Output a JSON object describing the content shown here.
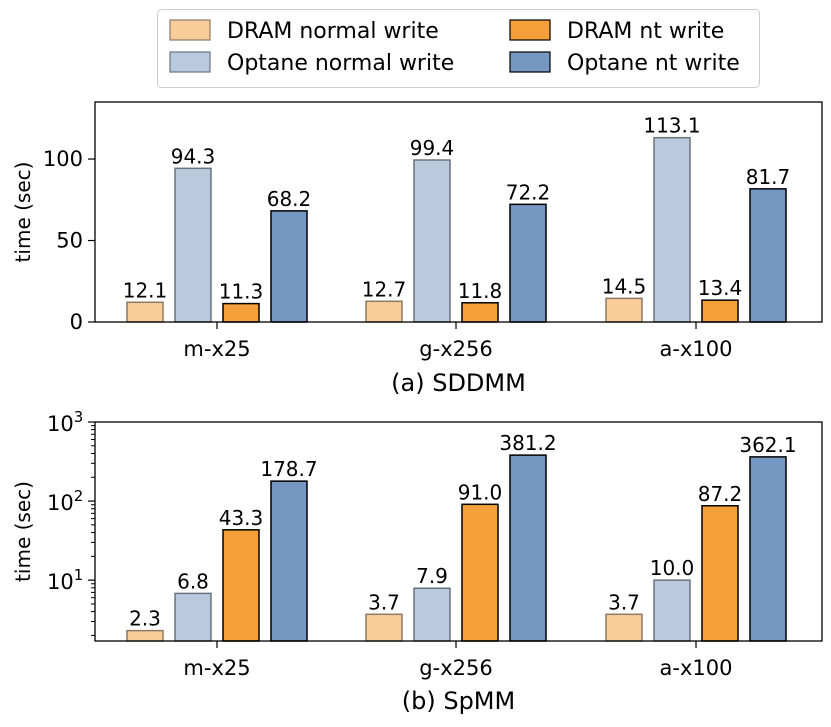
{
  "legend": {
    "entries": [
      {
        "label": "DRAM normal write",
        "fill": "#f8cd9a",
        "stroke": "#8a7a66"
      },
      {
        "label": "Optane normal write",
        "fill": "#b9c9de",
        "stroke": "#6b737c"
      },
      {
        "label": "DRAM nt write",
        "fill": "#f39f3a",
        "stroke": "#000000"
      },
      {
        "label": "Optane nt write",
        "fill": "#7598c2",
        "stroke": "#000000"
      }
    ]
  },
  "chart_data": [
    {
      "type": "bar",
      "title": "(a) SDDMM",
      "ylabel": "time (sec)",
      "scale": "linear",
      "ylim": [
        0,
        135
      ],
      "yticks": [
        {
          "value": 0,
          "label": "0"
        },
        {
          "value": 50,
          "label": "50"
        },
        {
          "value": 100,
          "label": "100"
        }
      ],
      "categories": [
        "m-x25",
        "g-x256",
        "a-x100"
      ],
      "series": [
        {
          "name": "DRAM normal write",
          "values": [
            12.1,
            12.7,
            14.5
          ],
          "labels": [
            "12.1",
            "12.7",
            "14.5"
          ]
        },
        {
          "name": "Optane normal write",
          "values": [
            94.3,
            99.4,
            113.1
          ],
          "labels": [
            "94.3",
            "99.4",
            "113.1"
          ]
        },
        {
          "name": "DRAM nt write",
          "values": [
            11.3,
            11.8,
            13.4
          ],
          "labels": [
            "11.3",
            "11.8",
            "13.4"
          ]
        },
        {
          "name": "Optane nt write",
          "values": [
            68.2,
            72.2,
            81.7
          ],
          "labels": [
            "68.2",
            "72.2",
            "81.7"
          ]
        }
      ]
    },
    {
      "type": "bar",
      "title": "(b) SpMM",
      "ylabel": "time (sec)",
      "scale": "log",
      "ylim": [
        1.7,
        1000
      ],
      "yticks": [
        {
          "value": 10,
          "base": "10",
          "exp": "1"
        },
        {
          "value": 100,
          "base": "10",
          "exp": "2"
        },
        {
          "value": 1000,
          "base": "10",
          "exp": "3"
        }
      ],
      "categories": [
        "m-x25",
        "g-x256",
        "a-x100"
      ],
      "series": [
        {
          "name": "DRAM normal write",
          "values": [
            2.3,
            3.7,
            3.7
          ],
          "labels": [
            "2.3",
            "3.7",
            "3.7"
          ]
        },
        {
          "name": "Optane normal write",
          "values": [
            6.8,
            7.9,
            10.0
          ],
          "labels": [
            "6.8",
            "7.9",
            "10.0"
          ]
        },
        {
          "name": "DRAM nt write",
          "values": [
            43.3,
            91.0,
            87.2
          ],
          "labels": [
            "43.3",
            "91.0",
            "87.2"
          ]
        },
        {
          "name": "Optane nt write",
          "values": [
            178.7,
            381.2,
            362.1
          ],
          "labels": [
            "178.7",
            "381.2",
            "362.1"
          ]
        }
      ]
    }
  ]
}
